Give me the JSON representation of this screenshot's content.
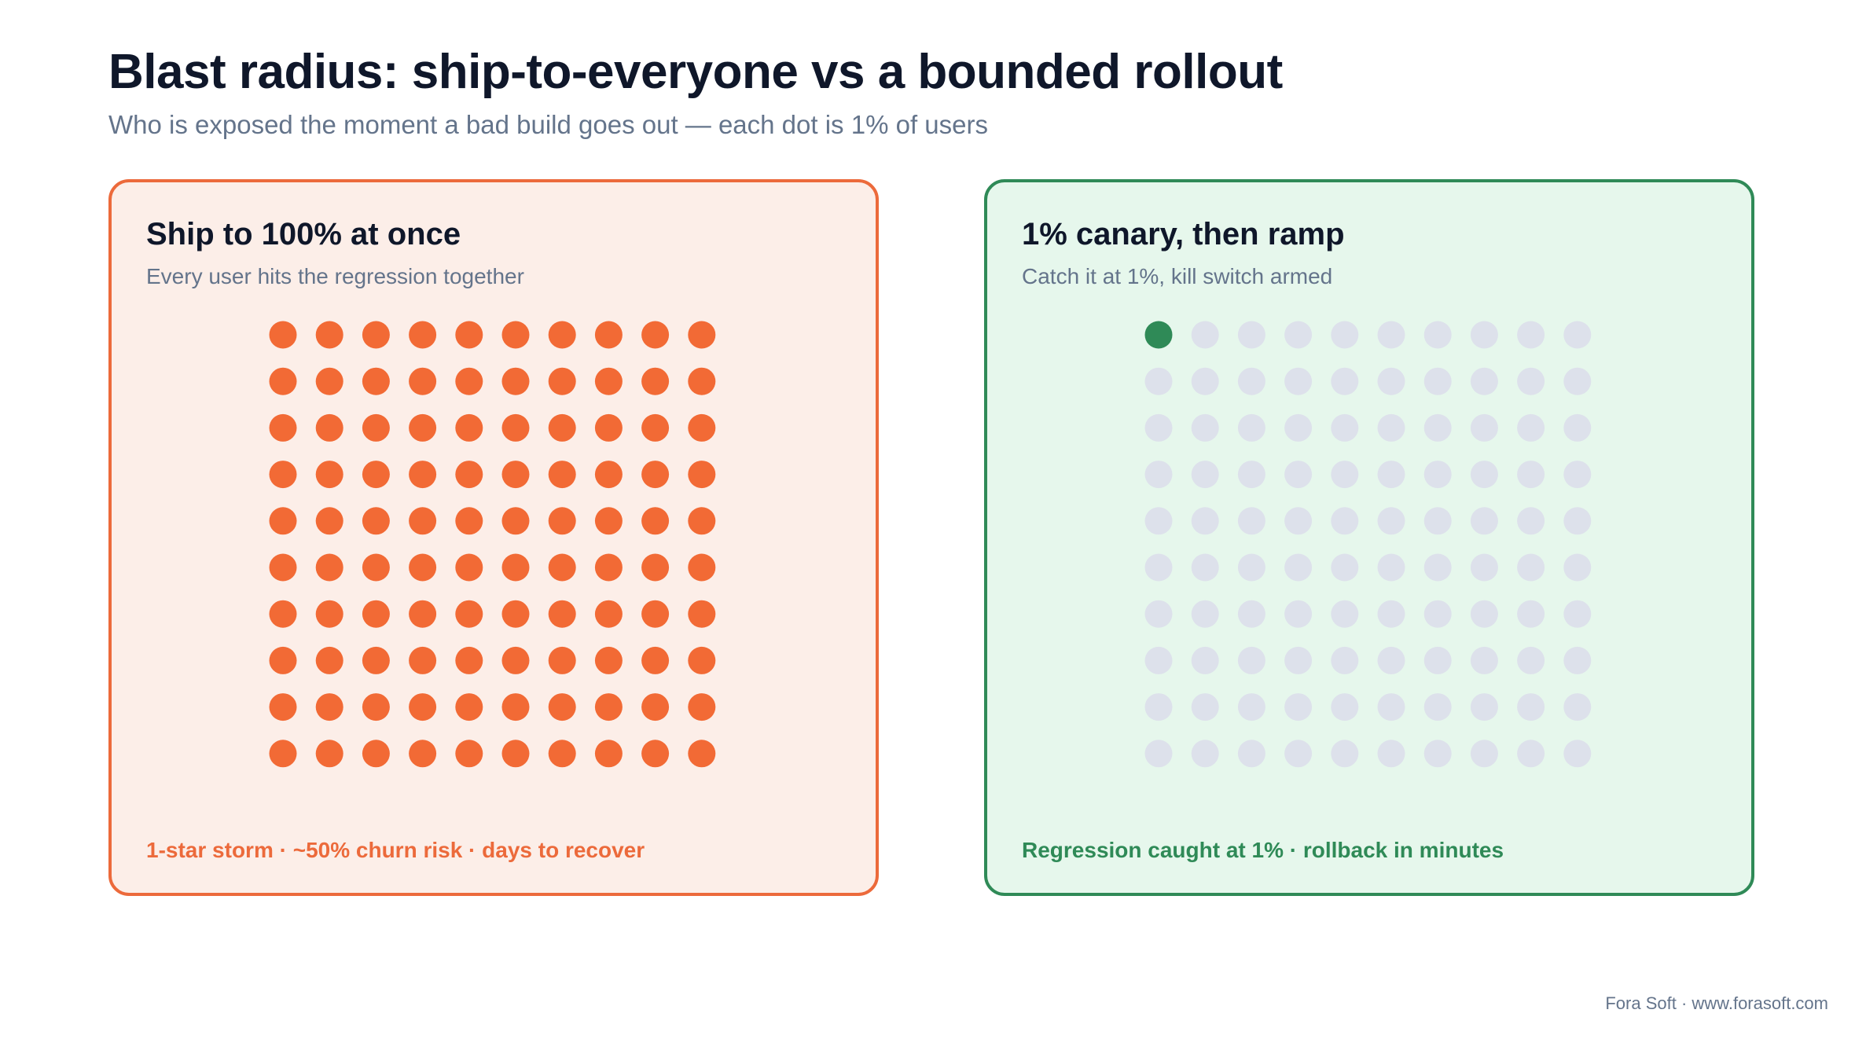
{
  "header": {
    "title": "Blast radius: ship-to-everyone vs a bounded rollout",
    "subtitle": "Who is exposed the moment a bad build goes out — each dot is 1% of users"
  },
  "colors": {
    "exposed_left": "#F26A35",
    "exposed_right": "#2F8A57",
    "unexposed": "#DDE1EB"
  },
  "panels": [
    {
      "title": "Ship to 100% at once",
      "subtitle": "Every user hits the regression together",
      "footer": "1-star storm · ~50% churn risk · days to recover",
      "grid_rows": 10,
      "grid_cols": 10,
      "exposed_percent": 100
    },
    {
      "title": "1% canary, then ramp",
      "subtitle": "Catch it at 1%, kill switch armed",
      "footer": "Regression caught at 1% · rollback in minutes",
      "grid_rows": 10,
      "grid_cols": 10,
      "exposed_percent": 1
    }
  ],
  "credit": "Fora Soft · www.forasoft.com"
}
